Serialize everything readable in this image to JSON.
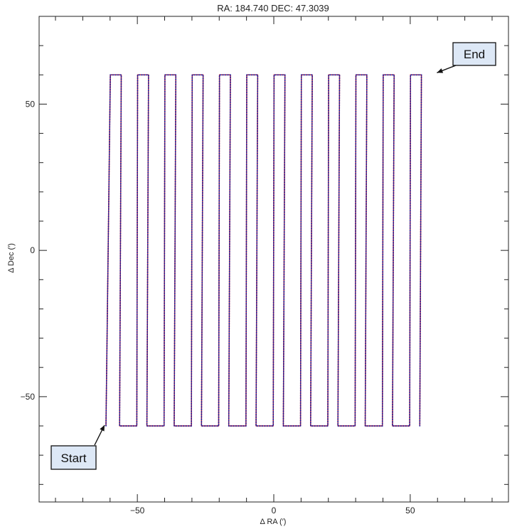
{
  "chart_data": {
    "type": "line",
    "title": "RA: 184.740   DEC: 47.3039",
    "xlabel": "Δ RA (′)",
    "ylabel": "Δ Dec (′)",
    "xlim": [
      -86,
      86
    ],
    "ylim": [
      -86,
      80
    ],
    "xticks": [
      -50,
      0,
      50
    ],
    "yticks": [
      -50,
      0,
      50
    ],
    "xtick_labels": [
      "−50",
      "0",
      "50"
    ],
    "ytick_labels": [
      "−50",
      "0",
      "50"
    ],
    "grid": false,
    "scan": {
      "n_legs": 24,
      "ra_start_bottom": -61.5,
      "ra_step": 5.0,
      "bottom_leg_offset": 1.3,
      "top_leg_offset": 0.3,
      "dec_min": -60,
      "dec_max": 60
    },
    "series": [
      {
        "role": "commanded",
        "color": "#1a1a9a",
        "style": "dotted"
      },
      {
        "role": "actual",
        "color": "#d42020",
        "style": "solid"
      }
    ],
    "annotations": [
      {
        "text": "Start",
        "x": -61.5,
        "y": -59
      },
      {
        "text": "End",
        "x": 59.0,
        "y": 60
      }
    ]
  }
}
